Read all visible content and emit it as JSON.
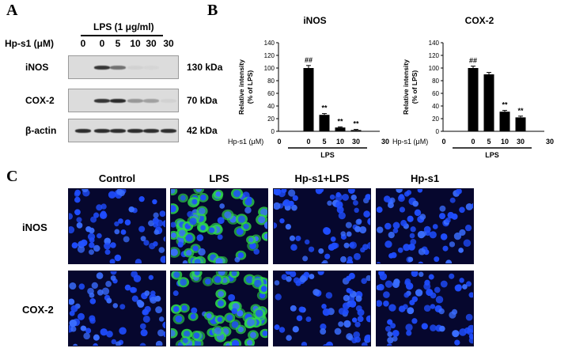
{
  "panels": {
    "a": "A",
    "b": "B",
    "c": "C"
  },
  "panel_a": {
    "treatment_label": "LPS (1 μg/ml)",
    "dose_row_label": "Hp-s1 (μM)",
    "doses": [
      "0",
      "0",
      "5",
      "10",
      "30",
      "30"
    ],
    "blots": [
      {
        "name": "iNOS",
        "size": "130 kDa",
        "intensities": [
          0.0,
          0.85,
          0.55,
          0.05,
          0.03,
          0.0
        ]
      },
      {
        "name": "COX-2",
        "size": "70 kDa",
        "intensities": [
          0.0,
          0.85,
          0.9,
          0.35,
          0.3,
          0.05
        ]
      },
      {
        "name": "β-actin",
        "size": "42 kDa",
        "intensities": [
          0.9,
          0.9,
          0.9,
          0.9,
          0.9,
          0.9
        ]
      }
    ]
  },
  "chart_data": [
    {
      "type": "bar",
      "title": "iNOS",
      "ylabel": "Relative intensity (% of LPS)",
      "ylabel_lines": [
        "Relative intensity",
        "(% of LPS)"
      ],
      "ylim": [
        0,
        140
      ],
      "yticks": [
        0,
        20,
        40,
        60,
        80,
        100,
        120,
        140
      ],
      "x_row_label": "Hp-s1 (μM)",
      "categories": [
        "0",
        "0",
        "5",
        "10",
        "30",
        "30"
      ],
      "values": [
        0,
        100,
        26,
        6,
        2,
        0
      ],
      "errors": [
        0,
        4,
        2,
        1,
        1,
        0
      ],
      "annotations": [
        "",
        "##",
        "**",
        "**",
        "**",
        ""
      ],
      "group_label": "LPS"
    },
    {
      "type": "bar",
      "title": "COX-2",
      "ylabel": "Relative intensity (% of LPS)",
      "ylabel_lines": [
        "Relative intensity",
        "(% of LPS)"
      ],
      "ylim": [
        0,
        140
      ],
      "yticks": [
        0,
        20,
        40,
        60,
        80,
        100,
        120,
        140
      ],
      "x_row_label": "Hp-s1 (μM)",
      "categories": [
        "0",
        "0",
        "5",
        "10",
        "30",
        "30"
      ],
      "values": [
        0,
        100,
        90,
        31,
        22,
        0
      ],
      "errors": [
        0,
        3,
        3,
        2,
        2,
        0
      ],
      "annotations": [
        "",
        "##",
        "",
        "**",
        "**",
        ""
      ],
      "group_label": "LPS"
    }
  ],
  "panel_c": {
    "columns": [
      "Control",
      "LPS",
      "Hp-s1+LPS",
      "Hp-s1"
    ],
    "rows": [
      "iNOS",
      "COX-2"
    ],
    "colors": {
      "background": "#06072e",
      "nucleus": "#1f4dff",
      "nucleus_bright": "#3a6dff",
      "green": "#2fdc4a"
    },
    "green_level": [
      [
        0.0,
        0.75,
        0.05,
        0.0
      ],
      [
        0.0,
        0.9,
        0.05,
        0.0
      ]
    ]
  }
}
